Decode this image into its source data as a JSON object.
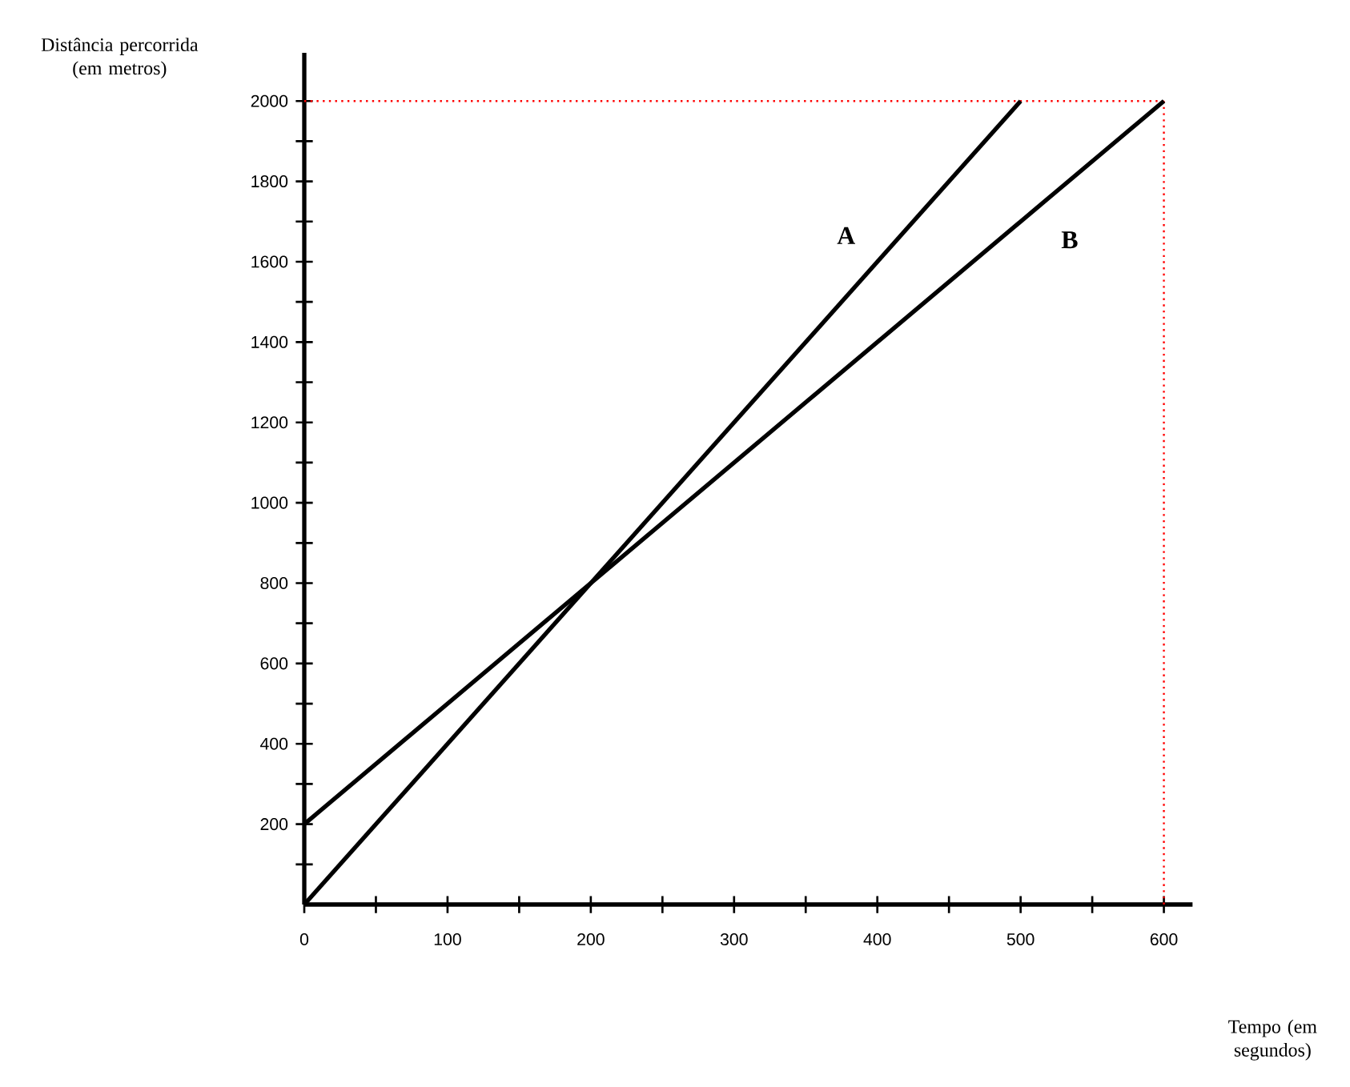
{
  "chart_data": {
    "type": "line",
    "xlabel": "Tempo (em segundos)",
    "ylabel": "Distância percorrida (em metros)",
    "grid": false,
    "marker": "none",
    "line_style": "solid",
    "xlim": [
      0,
      620
    ],
    "ylim": [
      0,
      2120
    ],
    "xticks": [
      0,
      {
        "value": 50,
        "label": null
      },
      100,
      {
        "value": 150,
        "label": null
      },
      200,
      {
        "value": 250,
        "label": null
      },
      300,
      {
        "value": 350,
        "label": null
      },
      400,
      {
        "value": 450,
        "label": null
      },
      500,
      {
        "value": 550,
        "label": null
      },
      600
    ],
    "yticks": [
      {
        "value": 100,
        "label": null
      },
      200,
      {
        "value": 300,
        "label": null
      },
      400,
      {
        "value": 500,
        "label": null
      },
      600,
      {
        "value": 700,
        "label": null
      },
      800,
      {
        "value": 900,
        "label": null
      },
      1000,
      {
        "value": 1100,
        "label": null
      },
      1200,
      {
        "value": 1300,
        "label": null
      },
      1400,
      {
        "value": 1500,
        "label": null
      },
      1600,
      {
        "value": 1700,
        "label": null
      },
      1800,
      {
        "value": 1900,
        "label": null
      },
      2000
    ],
    "series": [
      {
        "name": "A",
        "color": "#000000",
        "x": [
          0,
          500
        ],
        "values": [
          0,
          2000
        ]
      },
      {
        "name": "B",
        "color": "#000000",
        "x": [
          0,
          600
        ],
        "values": [
          200,
          2000
        ]
      }
    ],
    "ref_lines": [
      {
        "axis": "y",
        "value": 2000,
        "color": "#ff0000",
        "line_style": "dotted"
      },
      {
        "axis": "x",
        "value": 600,
        "color": "#ff0000",
        "line_style": "dotted"
      }
    ]
  }
}
